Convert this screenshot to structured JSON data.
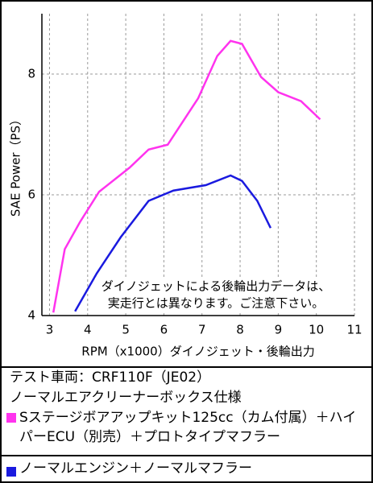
{
  "chart_data": {
    "type": "line",
    "x_label": "RPM（x1000）ダイノジェット・後輪出力",
    "y_label": "SAE Power（PS）",
    "xlim": [
      2.8,
      11
    ],
    "xticks": [
      3,
      4,
      5,
      6,
      7,
      8,
      9,
      10,
      11
    ],
    "ylim": [
      4,
      9
    ],
    "yticks": [
      4,
      6,
      8
    ],
    "grid": true,
    "annotation": [
      "ダイノジェットによる後輪出力データは、",
      "実走行とは異なります。ご注意下さい。"
    ],
    "notes": [
      "テスト車両：CRF110F（JE02）",
      "ノーマルエアクリーナーボックス仕様"
    ],
    "series": [
      {
        "name": "Sステージボアアップキット125cc（カム付属）＋ハイパーECU（別売）＋プロトタイプマフラー",
        "color": "#ff33ee",
        "x": [
          3.1,
          3.4,
          3.8,
          4.3,
          5.1,
          5.6,
          6.1,
          6.9,
          7.4,
          7.75,
          8.05,
          8.55,
          9.0,
          9.6,
          10.1
        ],
        "values": [
          4.05,
          5.1,
          5.55,
          6.05,
          6.45,
          6.75,
          6.83,
          7.6,
          8.3,
          8.55,
          8.5,
          7.95,
          7.7,
          7.55,
          7.25
        ]
      },
      {
        "name": "ノーマルエンジン＋ノーマルマフラー",
        "color": "#1a1adf",
        "x": [
          3.67,
          4.24,
          4.87,
          5.6,
          6.25,
          7.1,
          7.75,
          8.05,
          8.45,
          8.8
        ],
        "values": [
          4.07,
          4.7,
          5.3,
          5.9,
          6.07,
          6.16,
          6.32,
          6.23,
          5.9,
          5.45
        ]
      }
    ]
  }
}
